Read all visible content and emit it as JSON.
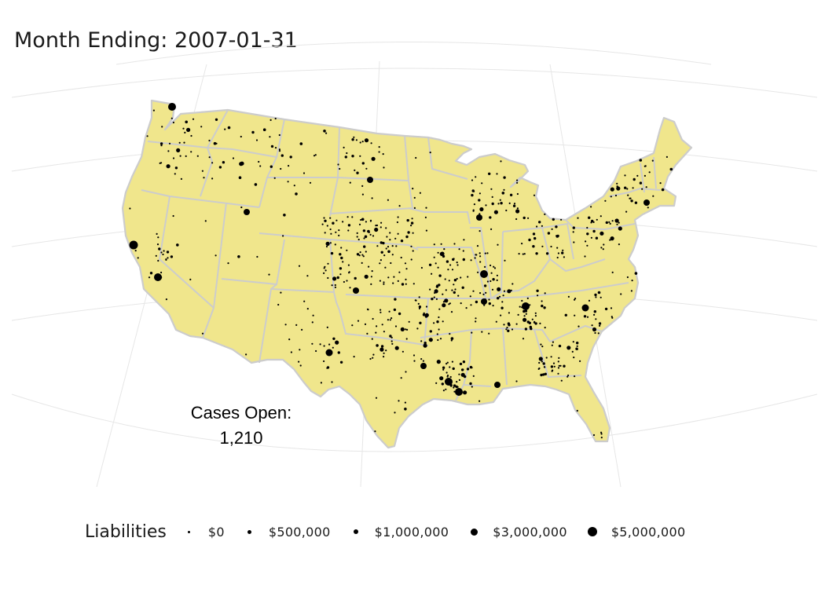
{
  "title": "Month Ending: 2007-01-31",
  "annotation": {
    "label": "Cases Open:",
    "value": "1,210"
  },
  "legend": {
    "title": "Liabilities",
    "items": [
      {
        "label": "$0",
        "value": 0
      },
      {
        "label": "$500,000",
        "value": 500000
      },
      {
        "label": "$1,000,000",
        "value": 1000000
      },
      {
        "label": "$3,000,000",
        "value": 3000000
      },
      {
        "label": "$5,000,000",
        "value": 5000000
      }
    ]
  },
  "colors": {
    "land": "#f0e68c",
    "border": "#cccccc",
    "graticule": "#e6e6e6",
    "points": "#000000",
    "background": "#ffffff"
  },
  "map": {
    "region": "contiguous United States",
    "projection": "conic",
    "point_layer": "open bankruptcy cases sized by liabilities"
  }
}
